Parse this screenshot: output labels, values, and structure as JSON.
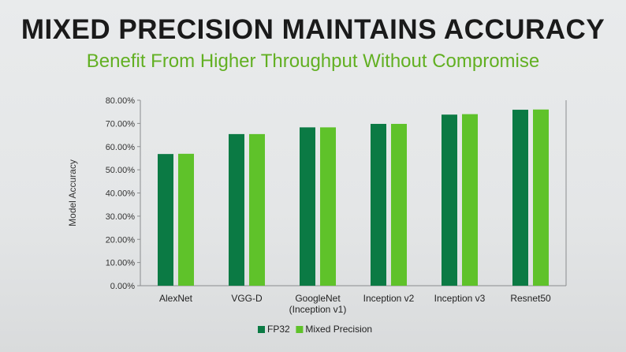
{
  "header": {
    "title": "MIXED PRECISION MAINTAINS ACCURACY",
    "subtitle": "Benefit From Higher Throughput Without Compromise"
  },
  "colors": {
    "fp32": "#0b7a44",
    "mixed": "#5fc22a",
    "subtitle": "#62b022"
  },
  "chart_data": {
    "type": "bar",
    "ylabel": "Model Accuracy",
    "ylim": [
      0,
      80
    ],
    "yticks": [
      "0.00%",
      "10.00%",
      "20.00%",
      "30.00%",
      "40.00%",
      "50.00%",
      "60.00%",
      "70.00%",
      "80.00%"
    ],
    "categories": [
      [
        "AlexNet"
      ],
      [
        "VGG-D"
      ],
      [
        "GoogleNet",
        "(Inception v1)"
      ],
      [
        "Inception v2"
      ],
      [
        "Inception v3"
      ],
      [
        "Resnet50"
      ]
    ],
    "series": [
      {
        "name": "FP32",
        "values": [
          56.8,
          65.4,
          68.3,
          69.8,
          73.8,
          75.9
        ]
      },
      {
        "name": "Mixed Precision",
        "values": [
          56.9,
          65.4,
          68.3,
          69.8,
          74.0,
          76.0
        ]
      }
    ],
    "legend": "bottom"
  }
}
